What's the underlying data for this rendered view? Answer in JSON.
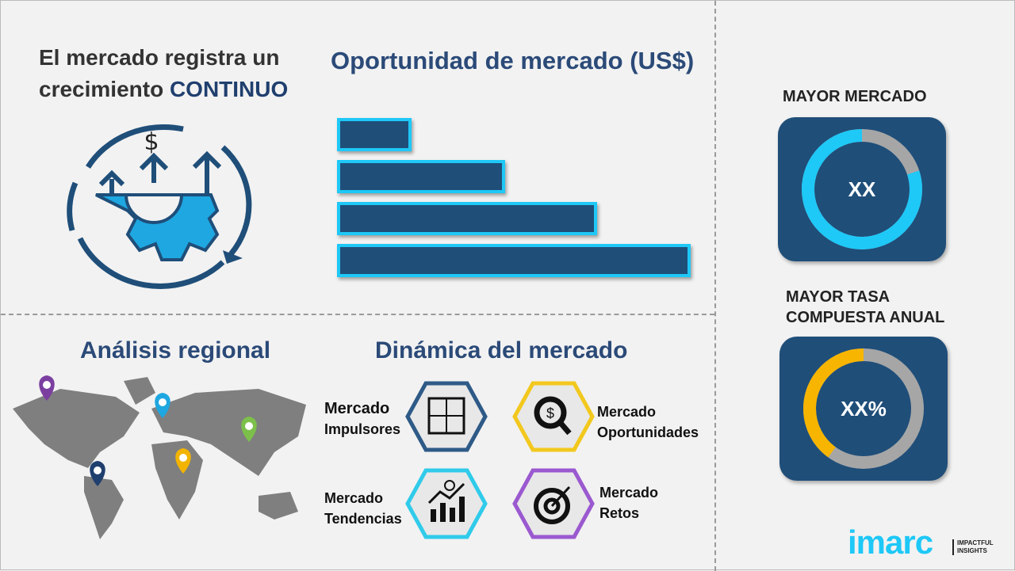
{
  "headline": {
    "line1": "El mercado registra un",
    "line2_prefix": "crecimiento ",
    "line2_emphasis": "CONTINUO"
  },
  "opportunity": {
    "title": "Oportunidad de mercado (US$)",
    "bar_color": "#1f4e79",
    "bar_border": "#1ec8f7"
  },
  "regional": {
    "title": "Análisis regional",
    "pin_colors": [
      "#7b3fa0",
      "#1ea7e0",
      "#7cc04b",
      "#f2b400",
      "#1f3f6e"
    ]
  },
  "dynamics": {
    "title": "Dinámica del mercado",
    "items": [
      {
        "line1": "Mercado",
        "line2": "Impulsores",
        "color": "#2e5a87",
        "icon": "puzzle-icon"
      },
      {
        "line1": "Mercado",
        "line2": "Oportunidades",
        "color": "#f2c81e",
        "icon": "magnifier-dollar-icon"
      },
      {
        "line1": "Mercado",
        "line2": "Tendencias",
        "color": "#30cbea",
        "icon": "chart-growth-icon"
      },
      {
        "line1": "Mercado",
        "line2": "Retos",
        "color": "#9b59d0",
        "icon": "target-icon"
      }
    ]
  },
  "largest_market": {
    "title": "MAYOR MERCADO",
    "value": "XX",
    "fill_fraction": 0.8,
    "fill_color": "#1ec8f7",
    "rest_color": "#a6a6a6"
  },
  "highest_cagr": {
    "title_line1": "MAYOR TASA",
    "title_line2": "COMPUESTA ANUAL",
    "value": "XX%",
    "fill_fraction": 0.4,
    "fill_color": "#f7b500",
    "rest_color": "#a6a6a6"
  },
  "logo": {
    "name": "imarc",
    "tag_line1": "IMPACTFUL",
    "tag_line2": "INSIGHTS"
  }
}
